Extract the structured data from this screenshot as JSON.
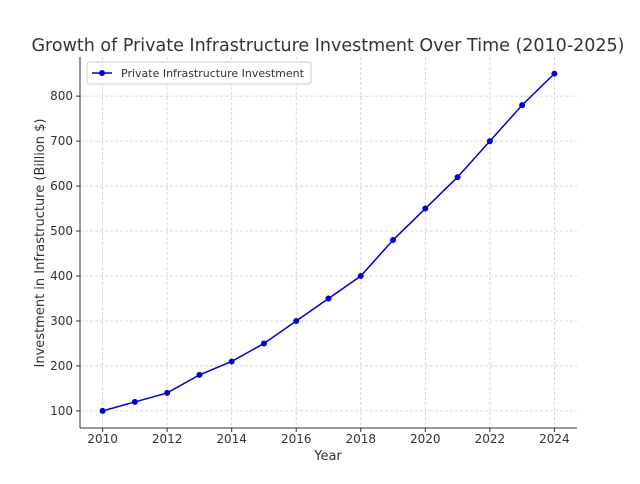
{
  "chart_data": {
    "type": "line",
    "title": "Growth of Private Infrastructure Investment Over Time (2010-2025)",
    "xlabel": "Year",
    "ylabel": "Investment in Infrastructure (Billion $)",
    "x": [
      2010,
      2011,
      2012,
      2013,
      2014,
      2015,
      2016,
      2017,
      2018,
      2019,
      2020,
      2021,
      2022,
      2023,
      2024
    ],
    "series": [
      {
        "name": "Private Infrastructure Investment",
        "color": "#0000cc",
        "values": [
          100,
          120,
          140,
          180,
          210,
          250,
          300,
          350,
          400,
          480,
          550,
          620,
          700,
          780,
          850
        ]
      }
    ],
    "xlim": [
      2009.3,
      2024.7
    ],
    "ylim": [
      62,
      887
    ],
    "xticks": [
      2010,
      2012,
      2014,
      2016,
      2018,
      2020,
      2022,
      2024
    ],
    "yticks": [
      100,
      200,
      300,
      400,
      500,
      600,
      700,
      800
    ],
    "grid": true,
    "legend_position": "top-left"
  }
}
